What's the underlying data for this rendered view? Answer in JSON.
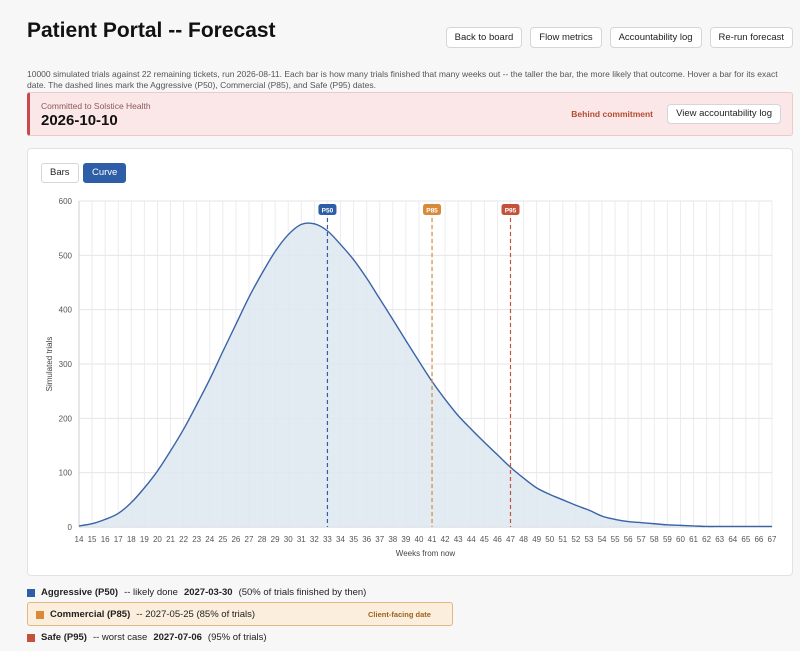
{
  "header": {
    "title": "Patient Portal -- Forecast",
    "buttons": [
      "Back to board",
      "Flow metrics",
      "Accountability log",
      "Re-run forecast"
    ]
  },
  "description": "10000 simulated trials against 22 remaining tickets, run 2026-08-11. Each bar is how many trials finished that many weeks out -- the taller the bar, the more likely that outcome. Hover a bar for its exact date. The dashed lines mark the Aggressive (P50), Commercial (P85), and Safe (P95) dates.",
  "commitment": {
    "label": "Committed to Solstice Health",
    "date": "2026-10-10",
    "status": "Behind commitment",
    "button": "View accountability log"
  },
  "view_toggle": {
    "bars": "Bars",
    "curve": "Curve",
    "active": "curve"
  },
  "colors": {
    "curve": "#3a63a6",
    "fill": "#dde6f0",
    "p50": "#2e5ea8",
    "p85": "#d9893a",
    "p95": "#c4523a",
    "status": "#b24b30"
  },
  "chart_data": {
    "type": "area",
    "xlabel": "Weeks from now",
    "ylabel": "Simulated trials",
    "xlim": [
      14,
      67
    ],
    "ylim": [
      0,
      600
    ],
    "yticks": [
      0,
      100,
      200,
      300,
      400,
      500,
      600
    ],
    "x": [
      14,
      15,
      16,
      17,
      18,
      19,
      20,
      21,
      22,
      23,
      24,
      25,
      26,
      27,
      28,
      29,
      30,
      31,
      32,
      33,
      34,
      35,
      36,
      37,
      38,
      39,
      40,
      41,
      42,
      43,
      44,
      45,
      46,
      47,
      48,
      49,
      50,
      51,
      52,
      53,
      54,
      55,
      56,
      57,
      58,
      59,
      60,
      61,
      62,
      63,
      64,
      65,
      66,
      67
    ],
    "values": [
      2,
      6,
      14,
      25,
      45,
      72,
      103,
      140,
      180,
      225,
      272,
      323,
      373,
      423,
      467,
      507,
      538,
      557,
      558,
      545,
      520,
      492,
      458,
      420,
      382,
      343,
      305,
      268,
      235,
      205,
      180,
      156,
      133,
      110,
      90,
      72,
      60,
      50,
      40,
      31,
      20,
      14,
      10,
      8,
      6,
      4,
      3,
      2,
      1,
      1,
      1,
      1,
      1,
      1
    ],
    "markers": [
      {
        "label": "P50",
        "x": 33
      },
      {
        "label": "P85",
        "x": 41
      },
      {
        "label": "P95",
        "x": 47
      }
    ]
  },
  "legend": {
    "aggressive": {
      "name": "Aggressive (P50)",
      "prefix": "-- likely done",
      "date": "2027-03-30",
      "note": "(50% of trials finished by then)"
    },
    "commercial": {
      "name": "Commercial (P85)",
      "text": "-- 2027-05-25 (85% of trials)",
      "tag": "Client-facing date"
    },
    "safe": {
      "name": "Safe (P95)",
      "prefix": "-- worst case",
      "date": "2027-07-06",
      "note": "(95% of trials)"
    }
  }
}
